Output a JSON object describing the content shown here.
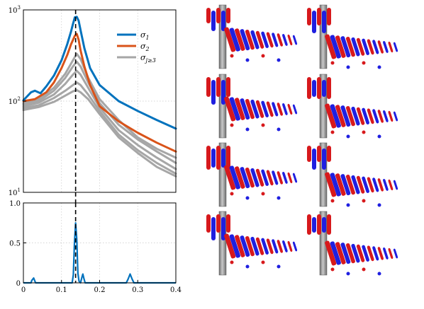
{
  "colors": {
    "sigma_1": "#0072BD",
    "sigma_2": "#D95319",
    "sigma_higher": "#A6A6A6",
    "mode_positive": "#D7191C",
    "mode_negative": "#1F1FE0",
    "cylinder": "#8C8C8C"
  },
  "legend": {
    "items": [
      {
        "key": "sigma_1",
        "text": "σ₁"
      },
      {
        "key": "sigma_2",
        "text": "σ₂"
      },
      {
        "key": "sigma_higher",
        "text": "σ_{j≥3}"
      }
    ]
  },
  "chart_data": [
    {
      "type": "line",
      "name": "singular-value-spectrum",
      "yscale": "log",
      "xlim": [
        0,
        0.4
      ],
      "ylim": [
        10,
        1000
      ],
      "x_ticks": [
        0,
        0.1,
        0.2,
        0.3,
        0.4
      ],
      "y_tick_labels": [
        "10¹",
        "10²",
        "10³"
      ],
      "y_tick_values": [
        10,
        100,
        1000
      ],
      "grid": true,
      "legend_position": "top-right",
      "vertical_line_x": 0.137,
      "series": [
        {
          "legend": "σ₁",
          "color_key": "sigma_1",
          "x": [
            0,
            0.02,
            0.03,
            0.045,
            0.06,
            0.08,
            0.1,
            0.115,
            0.125,
            0.13,
            0.135,
            0.14,
            0.145,
            0.15,
            0.16,
            0.175,
            0.2,
            0.25,
            0.3,
            0.35,
            0.4
          ],
          "y": [
            102,
            125,
            130,
            122,
            145,
            190,
            280,
            420,
            580,
            700,
            830,
            840,
            760,
            600,
            380,
            230,
            150,
            100,
            78,
            62,
            50
          ]
        },
        {
          "legend": "σ₂",
          "color_key": "sigma_2",
          "x": [
            0,
            0.03,
            0.06,
            0.08,
            0.1,
            0.115,
            0.125,
            0.135,
            0.14,
            0.145,
            0.15,
            0.16,
            0.175,
            0.2,
            0.25,
            0.3,
            0.35,
            0.4
          ],
          "y": [
            100,
            105,
            125,
            160,
            230,
            320,
            420,
            520,
            545,
            470,
            360,
            240,
            150,
            88,
            60,
            45,
            35,
            28
          ]
        },
        {
          "legend": "σ_{j≥3}",
          "color_key": "sigma_higher",
          "x": [
            0,
            0.04,
            0.08,
            0.11,
            0.13,
            0.14,
            0.15,
            0.17,
            0.2,
            0.25,
            0.3,
            0.35,
            0.4
          ],
          "y": [
            95,
            105,
            140,
            200,
            280,
            330,
            290,
            180,
            105,
            62,
            40,
            30,
            24
          ]
        },
        {
          "legend": "",
          "color_key": "sigma_higher",
          "x": [
            0,
            0.04,
            0.08,
            0.11,
            0.13,
            0.14,
            0.15,
            0.17,
            0.2,
            0.25,
            0.3,
            0.35,
            0.4
          ],
          "y": [
            92,
            100,
            130,
            180,
            240,
            270,
            240,
            160,
            95,
            55,
            38,
            28,
            21
          ]
        },
        {
          "legend": "",
          "color_key": "sigma_higher",
          "x": [
            0,
            0.04,
            0.08,
            0.11,
            0.13,
            0.14,
            0.15,
            0.17,
            0.2,
            0.25,
            0.3,
            0.35,
            0.4
          ],
          "y": [
            88,
            96,
            118,
            155,
            195,
            215,
            195,
            140,
            85,
            48,
            33,
            24,
            18
          ]
        },
        {
          "legend": "",
          "color_key": "sigma_higher",
          "x": [
            0,
            0.04,
            0.08,
            0.11,
            0.13,
            0.14,
            0.15,
            0.17,
            0.2,
            0.25,
            0.3,
            0.35,
            0.4
          ],
          "y": [
            84,
            90,
            108,
            130,
            150,
            160,
            150,
            118,
            78,
            43,
            29,
            21,
            16
          ]
        },
        {
          "legend": "",
          "color_key": "sigma_higher",
          "x": [
            0,
            0.04,
            0.08,
            0.11,
            0.13,
            0.14,
            0.15,
            0.17,
            0.2,
            0.25,
            0.3,
            0.35,
            0.4
          ],
          "y": [
            80,
            86,
            98,
            115,
            128,
            132,
            125,
            105,
            72,
            40,
            27,
            19,
            15
          ]
        }
      ]
    },
    {
      "type": "line",
      "name": "energy-fraction",
      "xlim": [
        0,
        0.4
      ],
      "ylim": [
        0,
        1
      ],
      "x_tick_labels": [
        "0",
        "0.1",
        "0.2",
        "0.3",
        "0.4"
      ],
      "x_tick_values": [
        0,
        0.1,
        0.2,
        0.3,
        0.4
      ],
      "y_tick_labels": [
        "0",
        "0.5",
        "1.0"
      ],
      "y_tick_values": [
        0,
        0.5,
        1.0
      ],
      "grid": true,
      "vertical_line_x": 0.137,
      "series": [
        {
          "legend": "",
          "color_key": "sigma_1",
          "x": [
            0,
            0.02,
            0.022,
            0.027,
            0.032,
            0.1,
            0.128,
            0.131,
            0.134,
            0.137,
            0.14,
            0.143,
            0.146,
            0.15,
            0.153,
            0.156,
            0.159,
            0.162,
            0.2,
            0.27,
            0.275,
            0.28,
            0.285,
            0.29,
            0.4
          ],
          "y": [
            0,
            0,
            0.03,
            0.06,
            0,
            0,
            0,
            0.1,
            0.5,
            0.75,
            0.55,
            0.12,
            0.02,
            0,
            0.06,
            0.11,
            0.05,
            0,
            0,
            0,
            0.05,
            0.11,
            0.05,
            0,
            0
          ]
        }
      ]
    }
  ],
  "mode_panels": {
    "count": 8,
    "description_visible": false
  }
}
